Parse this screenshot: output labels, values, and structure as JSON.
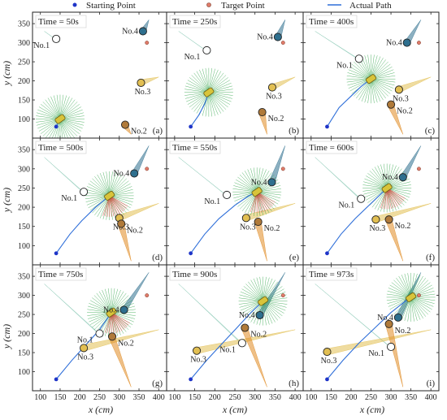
{
  "legend": {
    "start_label": "Starting Point",
    "target_label": "Target Point",
    "path_label": "Actual Path",
    "start_color": "#1f35c8",
    "target_color": "#e07b6a",
    "path_color": "#2f6fd9"
  },
  "colors": {
    "robot": "#d8c43a",
    "sensing": "#1f9d3a",
    "danger": "#e0413a",
    "no1": "#86c6b2",
    "no2": "#e08a22",
    "no3": "#e2bf52",
    "no4": "#2e6f8e"
  },
  "x_ticks": [
    100,
    150,
    200,
    250,
    300,
    350,
    400
  ],
  "y_ticks": [
    100,
    150,
    200,
    250,
    300,
    350
  ],
  "x_axis_label": "x (cm)",
  "y_axis_label": "y (cm)",
  "chart_data": {
    "type": "scatter",
    "start_point": [
      140,
      80
    ],
    "target_point": [
      370,
      300
    ],
    "xlim": [
      80,
      420
    ],
    "ylim": [
      50,
      380
    ],
    "panels": [
      {
        "letter": "(a)",
        "time_label": "Time = 50s",
        "robot": [
          150,
          100
        ],
        "danger": false,
        "path": [
          [
            140,
            80
          ],
          [
            150,
            100
          ]
        ],
        "obstacles": [
          {
            "name": "No.1",
            "x": 140,
            "y": 310,
            "color": "#ffffff"
          },
          {
            "name": "No.4",
            "x": 360,
            "y": 330,
            "color": "#2e6f8e"
          },
          {
            "name": "No.3",
            "x": 355,
            "y": 195,
            "color": "#e2bf52"
          },
          {
            "name": "No.2",
            "x": 315,
            "y": 85,
            "color": "#b07a3a"
          }
        ]
      },
      {
        "letter": "(b)",
        "time_label": "Time = 250s",
        "robot": [
          185,
          170
        ],
        "danger": false,
        "path": [
          [
            140,
            80
          ],
          [
            160,
            110
          ],
          [
            175,
            140
          ],
          [
            185,
            170
          ]
        ],
        "obstacles": [
          {
            "name": "No.1",
            "x": 180,
            "y": 280,
            "color": "#ffffff"
          },
          {
            "name": "No.4",
            "x": 357,
            "y": 315,
            "color": "#2e6f8e"
          },
          {
            "name": "No.3",
            "x": 343,
            "y": 183,
            "color": "#e2bf52"
          },
          {
            "name": "No.2",
            "x": 318,
            "y": 118,
            "color": "#b07a3a"
          }
        ]
      },
      {
        "letter": "(c)",
        "time_label": "Time = 400s",
        "robot": [
          250,
          205
        ],
        "danger": false,
        "path": [
          [
            140,
            80
          ],
          [
            170,
            130
          ],
          [
            200,
            160
          ],
          [
            225,
            185
          ],
          [
            250,
            205
          ]
        ],
        "obstacles": [
          {
            "name": "No.1",
            "x": 220,
            "y": 258,
            "color": "#ffffff"
          },
          {
            "name": "No.4",
            "x": 340,
            "y": 300,
            "color": "#2e6f8e"
          },
          {
            "name": "No.3",
            "x": 320,
            "y": 177,
            "color": "#e2bf52"
          },
          {
            "name": "No.2",
            "x": 300,
            "y": 138,
            "color": "#b07a3a"
          }
        ]
      },
      {
        "letter": "(d)",
        "time_label": "Time = 500s",
        "robot": [
          275,
          230
        ],
        "danger": true,
        "path": [
          [
            140,
            80
          ],
          [
            175,
            130
          ],
          [
            205,
            165
          ],
          [
            240,
            200
          ],
          [
            275,
            230
          ]
        ],
        "obstacles": [
          {
            "name": "No.1",
            "x": 210,
            "y": 240,
            "color": "#ffffff"
          },
          {
            "name": "No.4",
            "x": 338,
            "y": 288,
            "color": "#2e6f8e"
          },
          {
            "name": "No.3",
            "x": 300,
            "y": 172,
            "color": "#e2bf52"
          },
          {
            "name": "No.2",
            "x": 305,
            "y": 157,
            "color": "#b07a3a"
          }
        ]
      },
      {
        "letter": "(e)",
        "time_label": "Time = 550s",
        "robot": [
          305,
          240
        ],
        "danger": true,
        "path": [
          [
            140,
            80
          ],
          [
            175,
            130
          ],
          [
            210,
            170
          ],
          [
            250,
            205
          ],
          [
            285,
            230
          ],
          [
            305,
            240
          ]
        ],
        "obstacles": [
          {
            "name": "No.1",
            "x": 230,
            "y": 232,
            "color": "#ffffff"
          },
          {
            "name": "No.4",
            "x": 342,
            "y": 265,
            "color": "#2e6f8e"
          },
          {
            "name": "No.3",
            "x": 278,
            "y": 172,
            "color": "#e2bf52"
          },
          {
            "name": "No.2",
            "x": 308,
            "y": 162,
            "color": "#b07a3a"
          }
        ]
      },
      {
        "letter": "(f)",
        "time_label": "Time = 600s",
        "robot": [
          290,
          250
        ],
        "danger": true,
        "path": [
          [
            140,
            80
          ],
          [
            175,
            130
          ],
          [
            210,
            170
          ],
          [
            245,
            205
          ],
          [
            275,
            235
          ],
          [
            290,
            250
          ]
        ],
        "obstacles": [
          {
            "name": "No.1",
            "x": 225,
            "y": 222,
            "color": "#ffffff"
          },
          {
            "name": "No.4",
            "x": 330,
            "y": 278,
            "color": "#2e6f8e"
          },
          {
            "name": "No.3",
            "x": 262,
            "y": 168,
            "color": "#e2bf52"
          },
          {
            "name": "No.2",
            "x": 295,
            "y": 168,
            "color": "#b07a3a"
          }
        ]
      },
      {
        "letter": "(g)",
        "time_label": "Time = 750s",
        "robot": [
          280,
          255
        ],
        "danger": true,
        "path": [
          [
            140,
            80
          ],
          [
            180,
            130
          ],
          [
            215,
            170
          ],
          [
            250,
            210
          ],
          [
            270,
            240
          ],
          [
            280,
            255
          ]
        ],
        "obstacles": [
          {
            "name": "No.1",
            "x": 250,
            "y": 200,
            "color": "#ffffff"
          },
          {
            "name": "No.4",
            "x": 312,
            "y": 262,
            "color": "#2e6f8e"
          },
          {
            "name": "No.3",
            "x": 210,
            "y": 162,
            "color": "#e2bf52"
          },
          {
            "name": "No.2",
            "x": 282,
            "y": 192,
            "color": "#b07a3a"
          }
        ]
      },
      {
        "letter": "(h)",
        "time_label": "Time = 900s",
        "robot": [
          320,
          285
        ],
        "danger": false,
        "path": [
          [
            140,
            80
          ],
          [
            180,
            130
          ],
          [
            215,
            170
          ],
          [
            255,
            215
          ],
          [
            290,
            255
          ],
          [
            320,
            285
          ]
        ],
        "obstacles": [
          {
            "name": "No.1",
            "x": 268,
            "y": 175,
            "color": "#ffffff"
          },
          {
            "name": "No.4",
            "x": 312,
            "y": 248,
            "color": "#2e6f8e"
          },
          {
            "name": "No.3",
            "x": 155,
            "y": 155,
            "color": "#e2bf52"
          },
          {
            "name": "No.2",
            "x": 275,
            "y": 215,
            "color": "#b07a3a"
          }
        ]
      },
      {
        "letter": "(i)",
        "time_label": "Time = 973s",
        "robot": [
          350,
          295
        ],
        "danger": false,
        "path": [
          [
            140,
            80
          ],
          [
            180,
            130
          ],
          [
            220,
            175
          ],
          [
            260,
            215
          ],
          [
            300,
            255
          ],
          [
            330,
            280
          ],
          [
            350,
            295
          ]
        ],
        "obstacles": [
          {
            "name": "No.1",
            "x": 300,
            "y": 165,
            "color": "#ffffff"
          },
          {
            "name": "No.4",
            "x": 318,
            "y": 242,
            "color": "#2e6f8e"
          },
          {
            "name": "No.3",
            "x": 140,
            "y": 152,
            "color": "#e2bf52"
          },
          {
            "name": "No.2",
            "x": 295,
            "y": 225,
            "color": "#b07a3a"
          }
        ]
      }
    ]
  }
}
